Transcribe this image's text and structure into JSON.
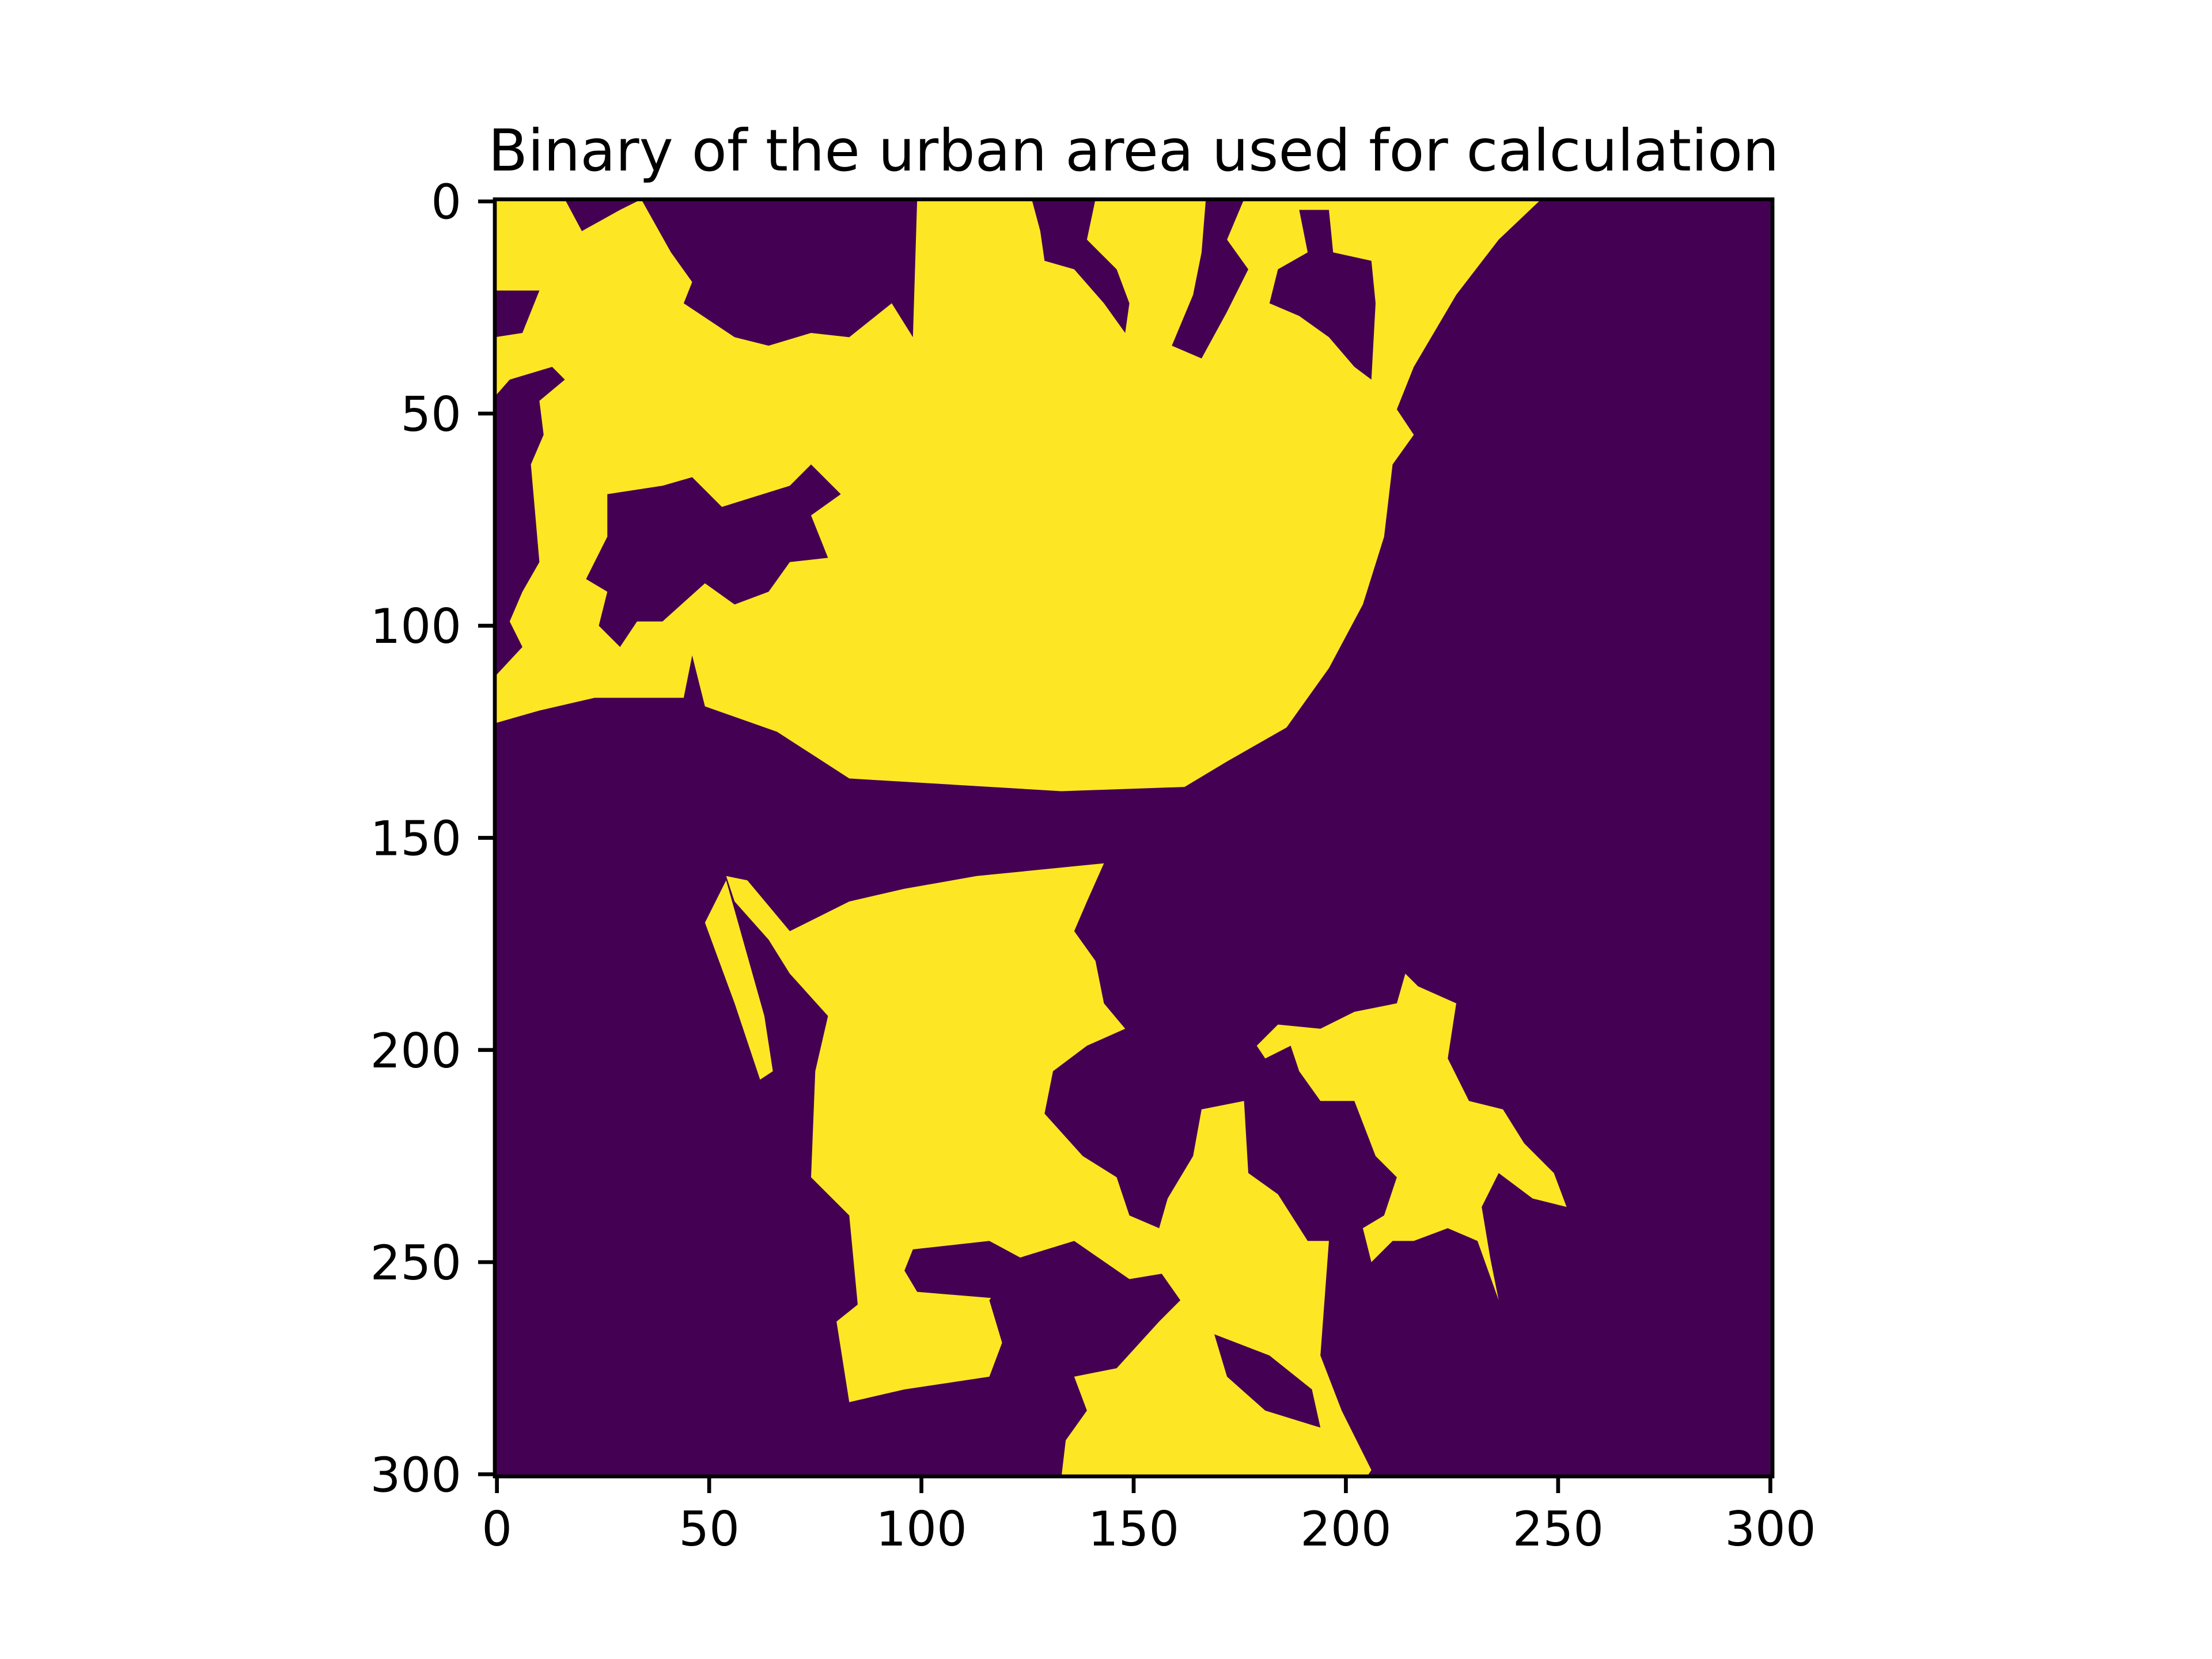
{
  "chart_data": {
    "type": "image",
    "title": "Binary of the urban area used for calculation",
    "xlim": [
      -0.5,
      300.5
    ],
    "ylim": [
      300.5,
      -0.5
    ],
    "xticks": [
      0,
      50,
      100,
      150,
      200,
      250,
      300
    ],
    "yticks": [
      0,
      50,
      100,
      150,
      200,
      250,
      300
    ],
    "colors": [
      "#440154",
      "#fde725"
    ],
    "regions": [
      {
        "value": 1,
        "points": [
          [
            -0.5,
            -0.5
          ],
          [
            16,
            -0.5
          ],
          [
            20,
            7
          ],
          [
            29,
            2
          ],
          [
            34,
            -0.5
          ],
          [
            41,
            12
          ],
          [
            46,
            19
          ],
          [
            44,
            24
          ],
          [
            56,
            32
          ],
          [
            64,
            34
          ],
          [
            74,
            31
          ],
          [
            83,
            32
          ],
          [
            93,
            24
          ],
          [
            98,
            32
          ],
          [
            99,
            -0.5
          ],
          [
            246,
            -0.5
          ],
          [
            236,
            9
          ],
          [
            226,
            22
          ],
          [
            216,
            39
          ],
          [
            212,
            49
          ],
          [
            216,
            55
          ],
          [
            211,
            62
          ],
          [
            209,
            79
          ],
          [
            204,
            95
          ],
          [
            196,
            110
          ],
          [
            186,
            124
          ],
          [
            172,
            132
          ],
          [
            162,
            138
          ],
          [
            133,
            139
          ],
          [
            83,
            136
          ],
          [
            66,
            125
          ],
          [
            49,
            119
          ],
          [
            46,
            107
          ],
          [
            44,
            117
          ],
          [
            23,
            117
          ],
          [
            10,
            120
          ],
          [
            -0.5,
            123
          ],
          [
            -0.5,
            112
          ],
          [
            6,
            105
          ],
          [
            3,
            99
          ],
          [
            6,
            92
          ],
          [
            10,
            85
          ],
          [
            8,
            62
          ],
          [
            11,
            55
          ],
          [
            10,
            47
          ],
          [
            16,
            42
          ],
          [
            13,
            39
          ],
          [
            3,
            42
          ],
          [
            -0.5,
            46
          ],
          [
            -0.5,
            32
          ],
          [
            6,
            31
          ],
          [
            10,
            21
          ],
          [
            -0.5,
            21
          ]
        ]
      },
      {
        "value": 0,
        "points": [
          [
            26,
            69
          ],
          [
            39,
            67
          ],
          [
            46,
            65
          ],
          [
            53,
            72
          ],
          [
            69,
            67
          ],
          [
            74,
            62
          ],
          [
            81,
            69
          ],
          [
            74,
            74
          ],
          [
            78,
            84
          ],
          [
            69,
            85
          ],
          [
            64,
            92
          ],
          [
            56,
            95
          ],
          [
            49,
            90
          ],
          [
            39,
            99
          ],
          [
            33,
            99
          ],
          [
            29,
            105
          ],
          [
            24,
            100
          ],
          [
            26,
            92
          ],
          [
            21,
            89
          ],
          [
            26,
            79
          ]
        ]
      },
      {
        "value": 0,
        "points": [
          [
            126,
            -0.5
          ],
          [
            141,
            -0.5
          ],
          [
            139,
            9
          ],
          [
            146,
            16
          ],
          [
            149,
            24
          ],
          [
            148,
            31
          ],
          [
            143,
            24
          ],
          [
            136,
            16
          ],
          [
            129,
            14
          ],
          [
            128,
            7
          ]
        ]
      },
      {
        "value": 0,
        "points": [
          [
            167,
            -0.5
          ],
          [
            176,
            -0.5
          ],
          [
            172,
            9
          ],
          [
            177,
            16
          ],
          [
            172,
            26
          ],
          [
            166,
            37
          ],
          [
            159,
            34
          ],
          [
            164,
            22
          ],
          [
            166,
            12
          ]
        ]
      },
      {
        "value": 0,
        "points": [
          [
            189,
            2
          ],
          [
            196,
            2
          ],
          [
            197,
            12
          ],
          [
            206,
            14
          ],
          [
            207,
            24
          ],
          [
            206,
            42
          ],
          [
            202,
            39
          ],
          [
            196,
            32
          ],
          [
            189,
            27
          ],
          [
            182,
            24
          ],
          [
            184,
            16
          ],
          [
            191,
            12
          ]
        ]
      },
      {
        "value": 1,
        "points": [
          [
            143,
            156
          ],
          [
            139,
            165
          ],
          [
            136,
            172
          ],
          [
            141,
            179
          ],
          [
            143,
            189
          ],
          [
            148,
            195
          ],
          [
            139,
            199
          ],
          [
            131,
            205
          ],
          [
            129,
            215
          ],
          [
            138,
            225
          ],
          [
            146,
            230
          ],
          [
            149,
            239
          ],
          [
            156,
            242
          ],
          [
            161,
            252
          ],
          [
            149,
            254
          ],
          [
            136,
            245
          ],
          [
            123,
            249
          ],
          [
            116,
            259
          ],
          [
            119,
            269
          ],
          [
            116,
            277
          ],
          [
            96,
            280
          ],
          [
            83,
            283
          ],
          [
            80,
            264
          ],
          [
            85,
            260
          ],
          [
            83,
            239
          ],
          [
            74,
            230
          ],
          [
            75,
            205
          ],
          [
            78,
            192
          ],
          [
            69,
            182
          ],
          [
            64,
            174
          ],
          [
            56,
            165
          ],
          [
            54,
            159
          ],
          [
            59,
            160
          ],
          [
            69,
            172
          ],
          [
            83,
            165
          ],
          [
            96,
            162
          ],
          [
            113,
            159
          ]
        ]
      },
      {
        "value": 0,
        "points": [
          [
            98,
            247
          ],
          [
            116,
            245
          ],
          [
            129,
            252
          ],
          [
            123,
            259
          ],
          [
            99,
            257
          ],
          [
            96,
            252
          ]
        ]
      },
      {
        "value": 1,
        "points": [
          [
            49,
            170
          ],
          [
            54,
            160
          ],
          [
            63,
            192
          ],
          [
            65,
            205
          ],
          [
            62,
            207
          ],
          [
            56,
            189
          ]
        ]
      },
      {
        "value": 1,
        "points": [
          [
            166,
            214
          ],
          [
            176,
            212
          ],
          [
            177,
            229
          ],
          [
            184,
            234
          ],
          [
            191,
            245
          ],
          [
            196,
            245
          ],
          [
            194,
            272
          ],
          [
            199,
            285
          ],
          [
            206,
            299
          ],
          [
            205,
            300.5
          ],
          [
            133,
            300.5
          ],
          [
            134,
            292
          ],
          [
            139,
            285
          ],
          [
            136,
            277
          ],
          [
            146,
            275
          ],
          [
            156,
            264
          ],
          [
            161,
            259
          ],
          [
            154,
            249
          ],
          [
            158,
            235
          ],
          [
            164,
            225
          ]
        ]
      },
      {
        "value": 0,
        "points": [
          [
            169,
            267
          ],
          [
            182,
            272
          ],
          [
            192,
            280
          ],
          [
            194,
            289
          ],
          [
            181,
            285
          ],
          [
            172,
            277
          ]
        ]
      },
      {
        "value": 1,
        "points": [
          [
            214,
            182
          ],
          [
            217,
            185
          ],
          [
            226,
            189
          ],
          [
            224,
            202
          ],
          [
            229,
            212
          ],
          [
            237,
            214
          ],
          [
            242,
            222
          ],
          [
            249,
            229
          ],
          [
            252,
            237
          ],
          [
            244,
            235
          ],
          [
            236,
            229
          ],
          [
            232,
            237
          ],
          [
            234,
            249
          ],
          [
            236,
            259
          ],
          [
            231,
            245
          ],
          [
            224,
            242
          ],
          [
            216,
            245
          ],
          [
            211,
            245
          ],
          [
            206,
            250
          ],
          [
            204,
            242
          ],
          [
            209,
            239
          ],
          [
            212,
            230
          ],
          [
            207,
            225
          ],
          [
            202,
            212
          ],
          [
            194,
            212
          ],
          [
            189,
            205
          ],
          [
            187,
            199
          ],
          [
            181,
            202
          ],
          [
            179,
            199
          ],
          [
            184,
            194
          ],
          [
            194,
            195
          ],
          [
            202,
            191
          ],
          [
            212,
            189
          ]
        ]
      }
    ]
  }
}
